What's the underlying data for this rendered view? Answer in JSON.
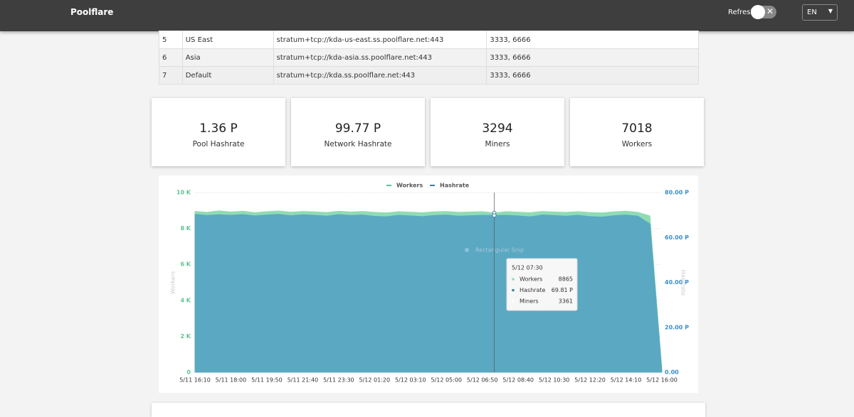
{
  "header": {
    "brand": "Poolflare",
    "refresh": "Refresh",
    "language": "EN"
  },
  "table": {
    "rows": [
      [
        "5",
        "US East",
        "stratum+tcp://kda-us-east.ss.poolflare.net:443",
        "3333, 6666"
      ],
      [
        "6",
        "Asia",
        "stratum+tcp://kda-asia.ss.poolflare.net:443",
        "3333, 6666"
      ],
      [
        "7",
        "Default",
        "stratum+tcp://kda.ss.poolflare.net:443",
        "3333, 6666"
      ]
    ]
  },
  "stats": [
    {
      "value": "1.36 P",
      "label": "Pool Hashrate"
    },
    {
      "value": "99.77 P",
      "label": "Network Hashrate"
    },
    {
      "value": "3294",
      "label": "Miners"
    },
    {
      "value": "7018",
      "label": "Workers"
    }
  ],
  "chart_data": {
    "type": "area",
    "categories": [
      "5/11 16:10",
      null,
      null,
      "5/11 18:00",
      null,
      null,
      "5/11 19:50",
      null,
      null,
      "5/11 21:40",
      null,
      null,
      "5/11 23:30",
      null,
      null,
      "5/12 01:20",
      null,
      null,
      "5/12 03:10",
      null,
      null,
      "5/12 05:00",
      null,
      null,
      "5/12 06:50",
      null,
      null,
      "5/12 08:40",
      null,
      null,
      "5/12 10:30",
      null,
      null,
      "5/12 12:20",
      null,
      null,
      "5/12 14:10",
      null,
      null,
      "5/12 16:00"
    ],
    "series": [
      {
        "name": "Workers",
        "color": "#8fdcb4",
        "values": [
          8950,
          8900,
          8980,
          8920,
          8960,
          8880,
          8940,
          8970,
          8910,
          8950,
          8930,
          8890,
          8960,
          8920,
          8950,
          8900,
          8870,
          8940,
          8910,
          8880,
          8930,
          8950,
          8900,
          8920,
          8940,
          8865,
          8940,
          8910,
          8880,
          8950,
          8920,
          8900,
          8940,
          8890,
          8870,
          8930,
          8960,
          8900,
          8700,
          150
        ]
      },
      {
        "name": "Hashrate",
        "color": "#5aa8c2",
        "axis": "y2",
        "values": [
          70.3,
          69.8,
          70.1,
          69.9,
          70.2,
          69.6,
          70.0,
          70.3,
          69.7,
          70.1,
          69.9,
          69.5,
          70.2,
          69.8,
          70.0,
          69.4,
          69.2,
          69.9,
          69.6,
          69.3,
          69.8,
          70.0,
          69.5,
          69.7,
          69.9,
          69.81,
          69.9,
          69.6,
          69.2,
          70.0,
          69.8,
          69.5,
          69.9,
          69.3,
          69.1,
          69.7,
          70.0,
          69.5,
          66.0,
          0.5
        ]
      }
    ],
    "ylim": [
      0,
      10000
    ],
    "yticks": [
      0,
      {
        "value": 2000,
        "label": "2 K"
      },
      {
        "value": 4000,
        "label": "4 K"
      },
      {
        "value": 6000,
        "label": "6 K"
      },
      {
        "value": 8000,
        "label": "8 K"
      },
      {
        "value": 10000,
        "label": "10 K"
      }
    ],
    "y2lim": [
      0,
      80
    ],
    "y2ticks": [
      {
        "value": 0,
        "label": "0.00"
      },
      {
        "value": 20,
        "label": "20.00 P"
      },
      {
        "value": 40,
        "label": "40.00 P"
      },
      {
        "value": 60,
        "label": "60.00 P"
      },
      {
        "value": 80,
        "label": "80.00 P"
      }
    ],
    "ylabel": "Workers",
    "y2label": "Hashrate",
    "legend": "top",
    "annotation": "Rectangular Snip",
    "tooltip": {
      "index": 25,
      "title": "5/12 07:30",
      "items": [
        {
          "name": "Workers",
          "value": "8865",
          "color": "#8fdcb4"
        },
        {
          "name": "Hashrate",
          "value": "69.81 P",
          "color": "#3a7fa0"
        },
        {
          "name": "Miners",
          "value": "3361",
          "color": "#ffffff"
        }
      ]
    }
  }
}
